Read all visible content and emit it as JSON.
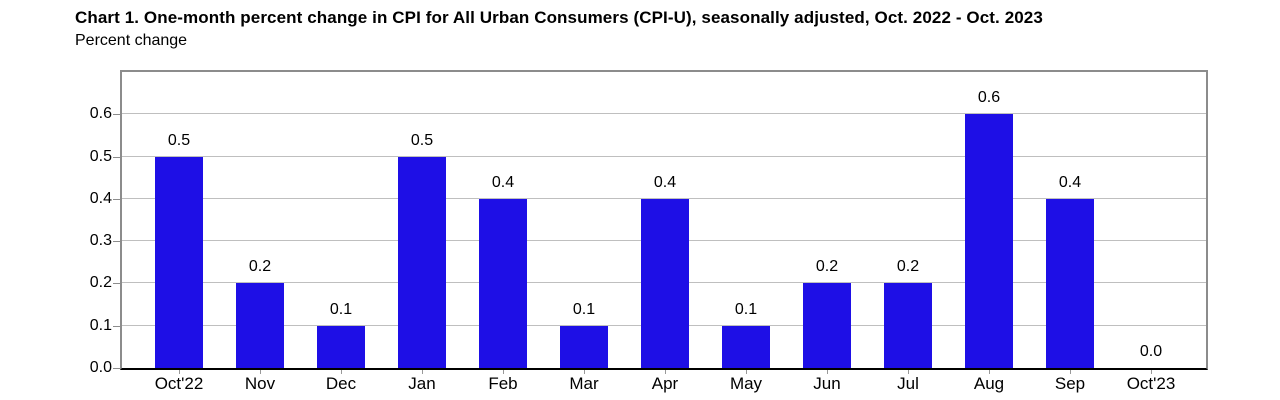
{
  "chart_data": {
    "type": "bar",
    "title": "Chart 1. One-month percent change in CPI for All Urban Consumers (CPI-U), seasonally adjusted, Oct. 2022 - Oct. 2023",
    "ylabel": "Percent change",
    "xlabel": "",
    "categories": [
      "Oct'22",
      "Nov",
      "Dec",
      "Jan",
      "Feb",
      "Mar",
      "Apr",
      "May",
      "Jun",
      "Jul",
      "Aug",
      "Sep",
      "Oct'23"
    ],
    "values": [
      0.5,
      0.2,
      0.1,
      0.5,
      0.4,
      0.1,
      0.4,
      0.1,
      0.2,
      0.2,
      0.6,
      0.4,
      0.0
    ],
    "bar_labels": [
      "0.5",
      "0.2",
      "0.1",
      "0.5",
      "0.4",
      "0.1",
      "0.4",
      "0.1",
      "0.2",
      "0.2",
      "0.6",
      "0.4",
      "0.0"
    ],
    "yticks": [
      0.0,
      0.1,
      0.2,
      0.3,
      0.4,
      0.5,
      0.6
    ],
    "ytick_labels": [
      "0.0",
      "0.1",
      "0.2",
      "0.3",
      "0.4",
      "0.5",
      "0.6"
    ],
    "ylim": [
      0,
      0.7
    ],
    "grid": "horizontal",
    "legend": "none",
    "colors": {
      "bar": "#1e0fe6",
      "gridline": "#bfbfbf",
      "plot_border": "#8c8c8c",
      "x_axis_line": "#000000",
      "text": "#000000",
      "background": "#ffffff"
    }
  }
}
